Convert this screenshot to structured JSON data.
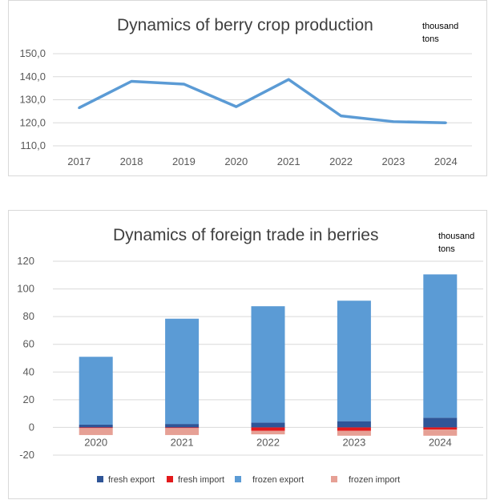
{
  "chart_data": [
    {
      "type": "line",
      "title": "Dynamics of berry crop production",
      "unit_label": "thousand tons",
      "categories": [
        "2017",
        "2018",
        "2019",
        "2020",
        "2021",
        "2022",
        "2023",
        "2024"
      ],
      "series": [
        {
          "values": [
            126.5,
            138.0,
            136.8,
            127.0,
            138.8,
            123.0,
            120.5,
            120.0
          ]
        }
      ],
      "ylim": [
        110,
        150
      ],
      "yticks": [
        110,
        120,
        130,
        140,
        150
      ],
      "ytick_labels": [
        "110,0",
        "120,0",
        "130,0",
        "140,0",
        "150,0"
      ],
      "grid": true,
      "line_color": "#5b9bd5"
    },
    {
      "type": "bar",
      "stacked": true,
      "title": "Dynamics of foreign trade in berries",
      "unit_label": "thousand tons",
      "categories": [
        "2020",
        "2021",
        "2022",
        "2023",
        "2024"
      ],
      "series": [
        {
          "name": "fresh export",
          "color": "#2f5597",
          "values": [
            2,
            2.5,
            3.5,
            4.5,
            7
          ]
        },
        {
          "name": "fresh import",
          "color": "#e31a1c",
          "values": [
            -0.5,
            -0.5,
            -2.5,
            -2.5,
            -1.5
          ]
        },
        {
          "name": "frozen export",
          "color": "#5b9bd5",
          "values": [
            49,
            76,
            84,
            87,
            103.5
          ]
        },
        {
          "name": "frozen import",
          "color": "#e6a095",
          "values": [
            -5,
            -5,
            -2.5,
            -3.5,
            -4.5
          ]
        }
      ],
      "ylim": [
        -20,
        120
      ],
      "yticks": [
        -20,
        0,
        20,
        40,
        60,
        80,
        100,
        120
      ],
      "legend_position": "bottom",
      "grid": true
    }
  ]
}
